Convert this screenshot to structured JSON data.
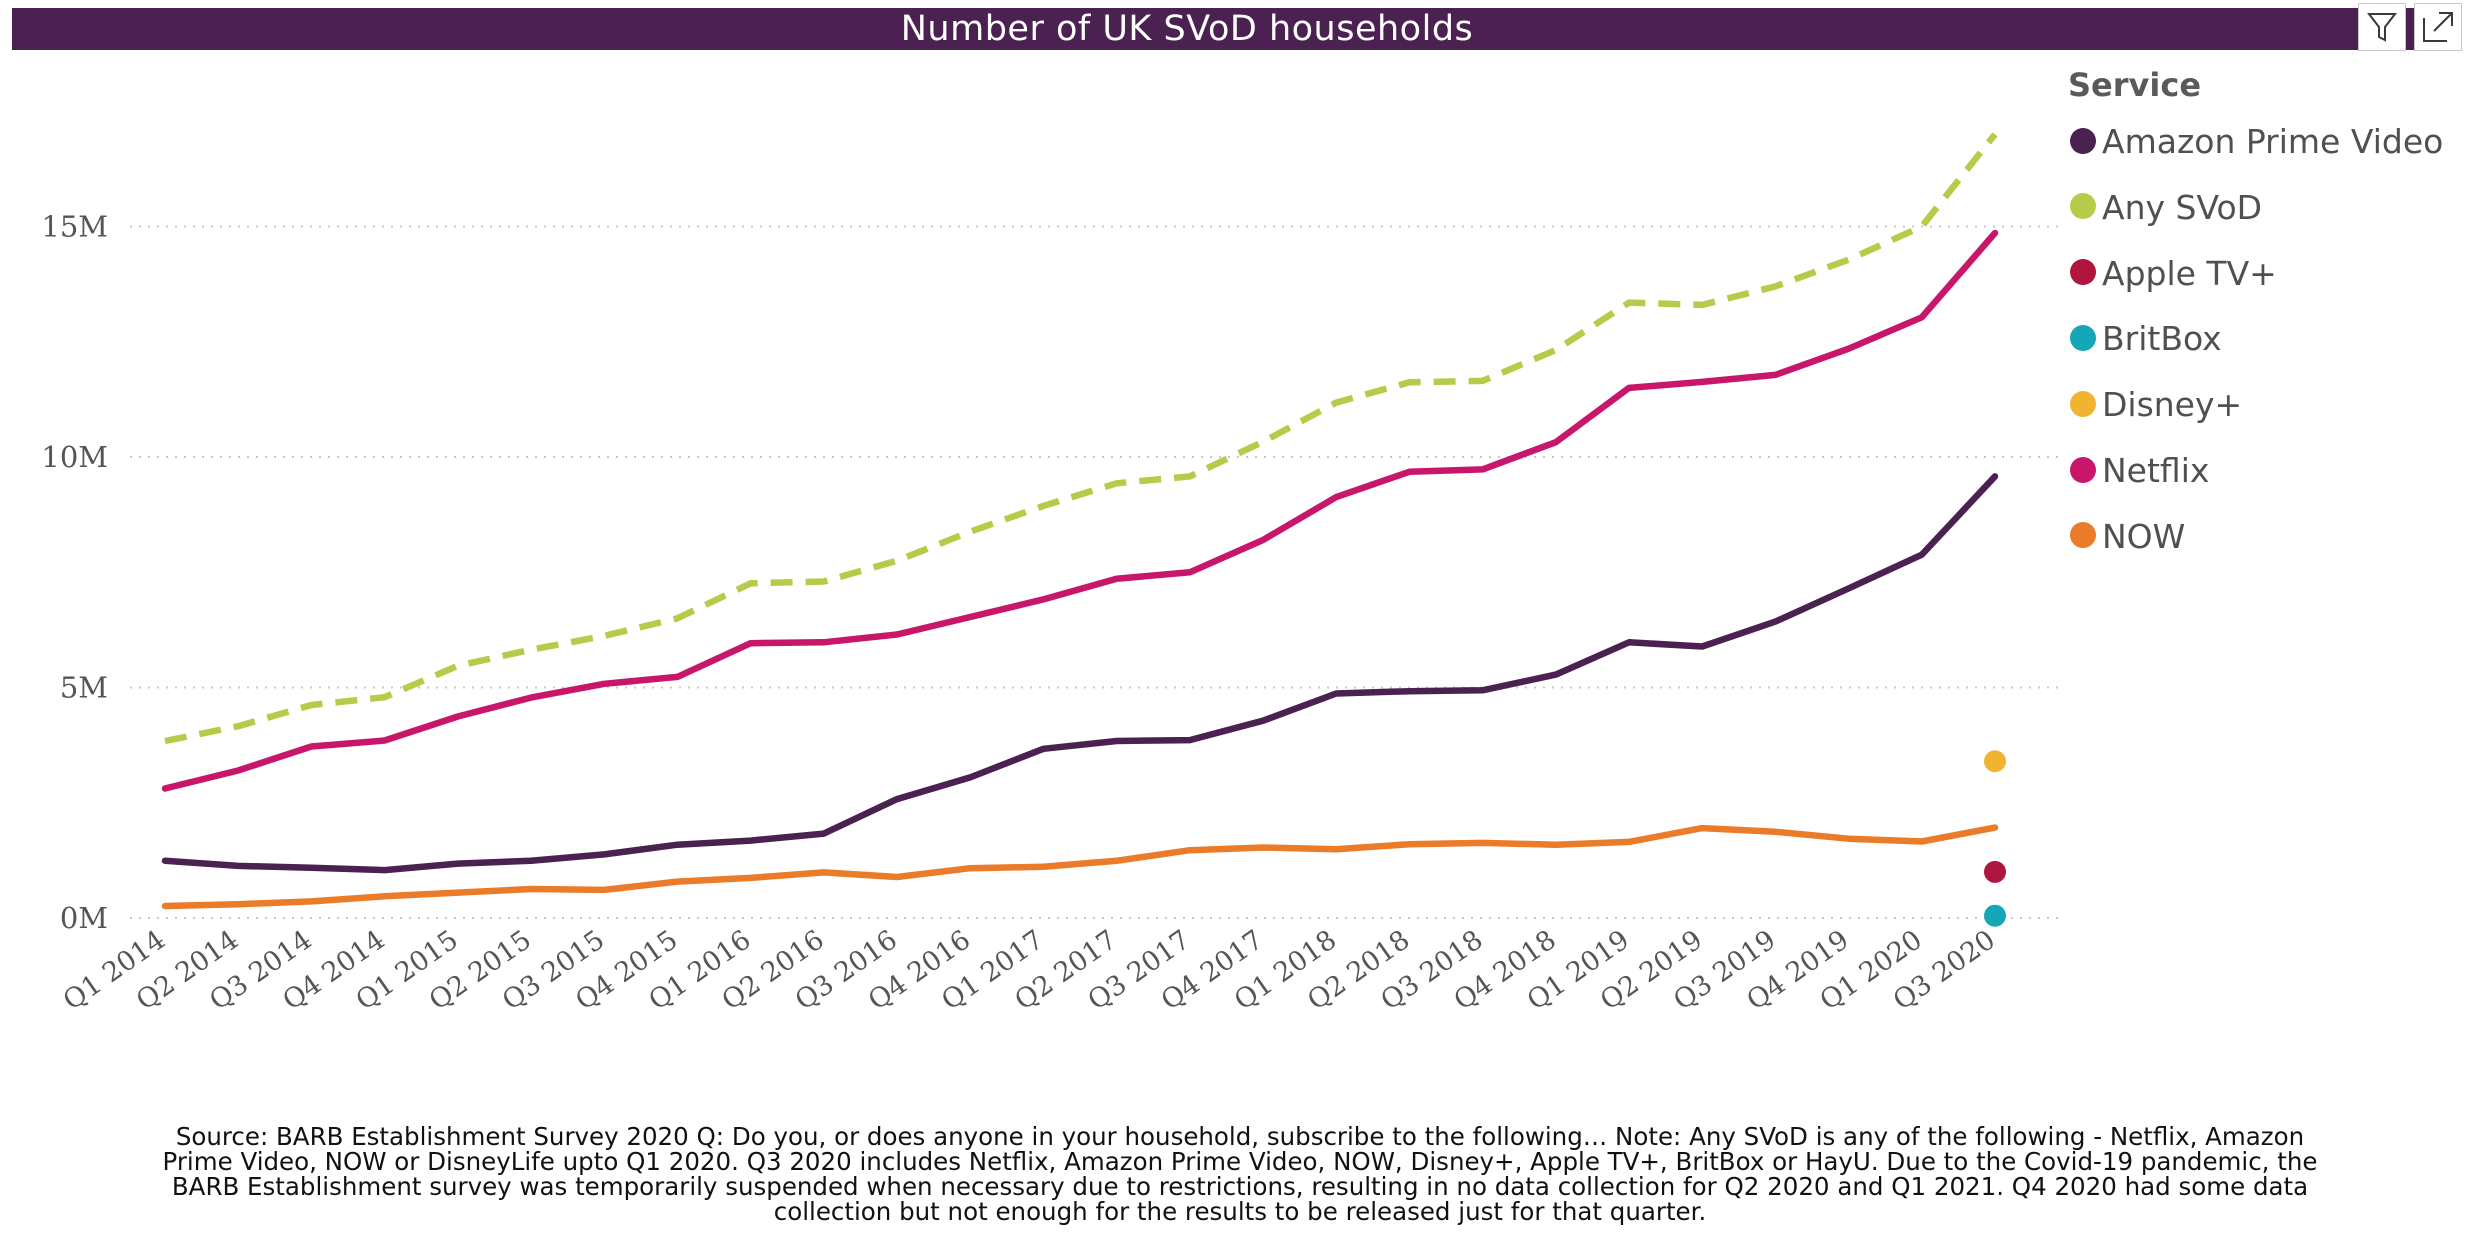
{
  "title": "Number of UK SVoD households",
  "legend": {
    "title": "Service",
    "items": [
      {
        "label": "Amazon Prime Video",
        "color": "#4a2150"
      },
      {
        "label": "Any SVoD",
        "color": "#b5cc4a"
      },
      {
        "label": "Apple TV+",
        "color": "#b01540"
      },
      {
        "label": "BritBox",
        "color": "#15a6b8"
      },
      {
        "label": "Disney+",
        "color": "#f0b431"
      },
      {
        "label": "Netflix",
        "color": "#c8166a"
      },
      {
        "label": "NOW",
        "color": "#ea7b29"
      }
    ]
  },
  "toolbar": {
    "filter_icon": "filter-icon",
    "focus_icon": "focus-mode-icon"
  },
  "footnote": "Source: BARB Establishment Survey 2020 Q: Do you, or does anyone in your household, subscribe to the following… Note: Any SVoD is any of the following - Netflix, Amazon Prime Video, NOW or DisneyLife upto Q1 2020. Q3 2020 includes Netflix, Amazon Prime Video, NOW, Disney+, Apple TV+, BritBox or HayU. Due to the Covid-19 pandemic, the BARB Establishment survey was temporarily suspended when necessary due to restrictions, resulting in no data collection for Q2 2020 and Q1 2021. Q4 2020 had some data collection but not enough for the results to be released just for that quarter.",
  "chart_data": {
    "type": "line",
    "title": "Number of UK SVoD households",
    "x": [
      "Q1 2014",
      "Q2 2014",
      "Q3 2014",
      "Q4 2014",
      "Q1 2015",
      "Q2 2015",
      "Q3 2015",
      "Q4 2015",
      "Q1 2016",
      "Q2 2016",
      "Q3 2016",
      "Q4 2016",
      "Q1 2017",
      "Q2 2017",
      "Q3 2017",
      "Q4 2017",
      "Q1 2018",
      "Q2 2018",
      "Q3 2018",
      "Q4 2018",
      "Q1 2019",
      "Q2 2019",
      "Q3 2019",
      "Q4 2019",
      "Q1 2020",
      "Q3 2020"
    ],
    "ylim": [
      0,
      17
    ],
    "yticks": [
      {
        "value": 0,
        "label": "0M"
      },
      {
        "value": 5,
        "label": "5M"
      },
      {
        "value": 10,
        "label": "10M"
      },
      {
        "value": 15,
        "label": "15M"
      }
    ],
    "grid": true,
    "legend_position": "right",
    "series": [
      {
        "name": "Any SVoD",
        "color": "#b5cc4a",
        "style": "dashed",
        "values": [
          3.84,
          4.16,
          4.62,
          4.79,
          5.47,
          5.82,
          6.12,
          6.5,
          7.26,
          7.3,
          7.75,
          8.38,
          8.94,
          9.43,
          9.58,
          10.33,
          11.18,
          11.62,
          11.65,
          12.32,
          13.35,
          13.3,
          13.7,
          14.28,
          15.0,
          17.0
        ]
      },
      {
        "name": "Netflix",
        "color": "#c8166a",
        "style": "solid",
        "values": [
          2.81,
          3.2,
          3.72,
          3.85,
          4.37,
          4.78,
          5.08,
          5.23,
          5.96,
          5.98,
          6.15,
          6.53,
          6.91,
          7.36,
          7.5,
          8.2,
          9.13,
          9.68,
          9.73,
          10.32,
          11.5,
          11.63,
          11.78,
          12.35,
          13.03,
          14.86
        ]
      },
      {
        "name": "Amazon Prime Video",
        "color": "#4a2150",
        "style": "solid",
        "values": [
          1.24,
          1.13,
          1.09,
          1.04,
          1.18,
          1.24,
          1.38,
          1.59,
          1.68,
          1.83,
          2.58,
          3.05,
          3.67,
          3.84,
          3.86,
          4.28,
          4.87,
          4.92,
          4.94,
          5.28,
          5.98,
          5.89,
          6.43,
          7.15,
          7.88,
          9.58
        ]
      },
      {
        "name": "NOW",
        "color": "#ea7b29",
        "style": "solid",
        "values": [
          0.26,
          0.3,
          0.36,
          0.47,
          0.55,
          0.63,
          0.61,
          0.79,
          0.87,
          0.99,
          0.89,
          1.08,
          1.11,
          1.24,
          1.47,
          1.53,
          1.49,
          1.6,
          1.63,
          1.59,
          1.65,
          1.95,
          1.87,
          1.72,
          1.66,
          1.96
        ]
      },
      {
        "name": "Disney+",
        "color": "#f0b431",
        "style": "point",
        "values": [
          null,
          null,
          null,
          null,
          null,
          null,
          null,
          null,
          null,
          null,
          null,
          null,
          null,
          null,
          null,
          null,
          null,
          null,
          null,
          null,
          null,
          null,
          null,
          null,
          null,
          3.4
        ]
      },
      {
        "name": "Apple TV+",
        "color": "#b01540",
        "style": "point",
        "values": [
          null,
          null,
          null,
          null,
          null,
          null,
          null,
          null,
          null,
          null,
          null,
          null,
          null,
          null,
          null,
          null,
          null,
          null,
          null,
          null,
          null,
          null,
          null,
          null,
          null,
          1.0
        ]
      },
      {
        "name": "BritBox",
        "color": "#15a6b8",
        "style": "point",
        "values": [
          null,
          null,
          null,
          null,
          null,
          null,
          null,
          null,
          null,
          null,
          null,
          null,
          null,
          null,
          null,
          null,
          null,
          null,
          null,
          null,
          null,
          null,
          null,
          null,
          null,
          0.05
        ]
      }
    ]
  }
}
